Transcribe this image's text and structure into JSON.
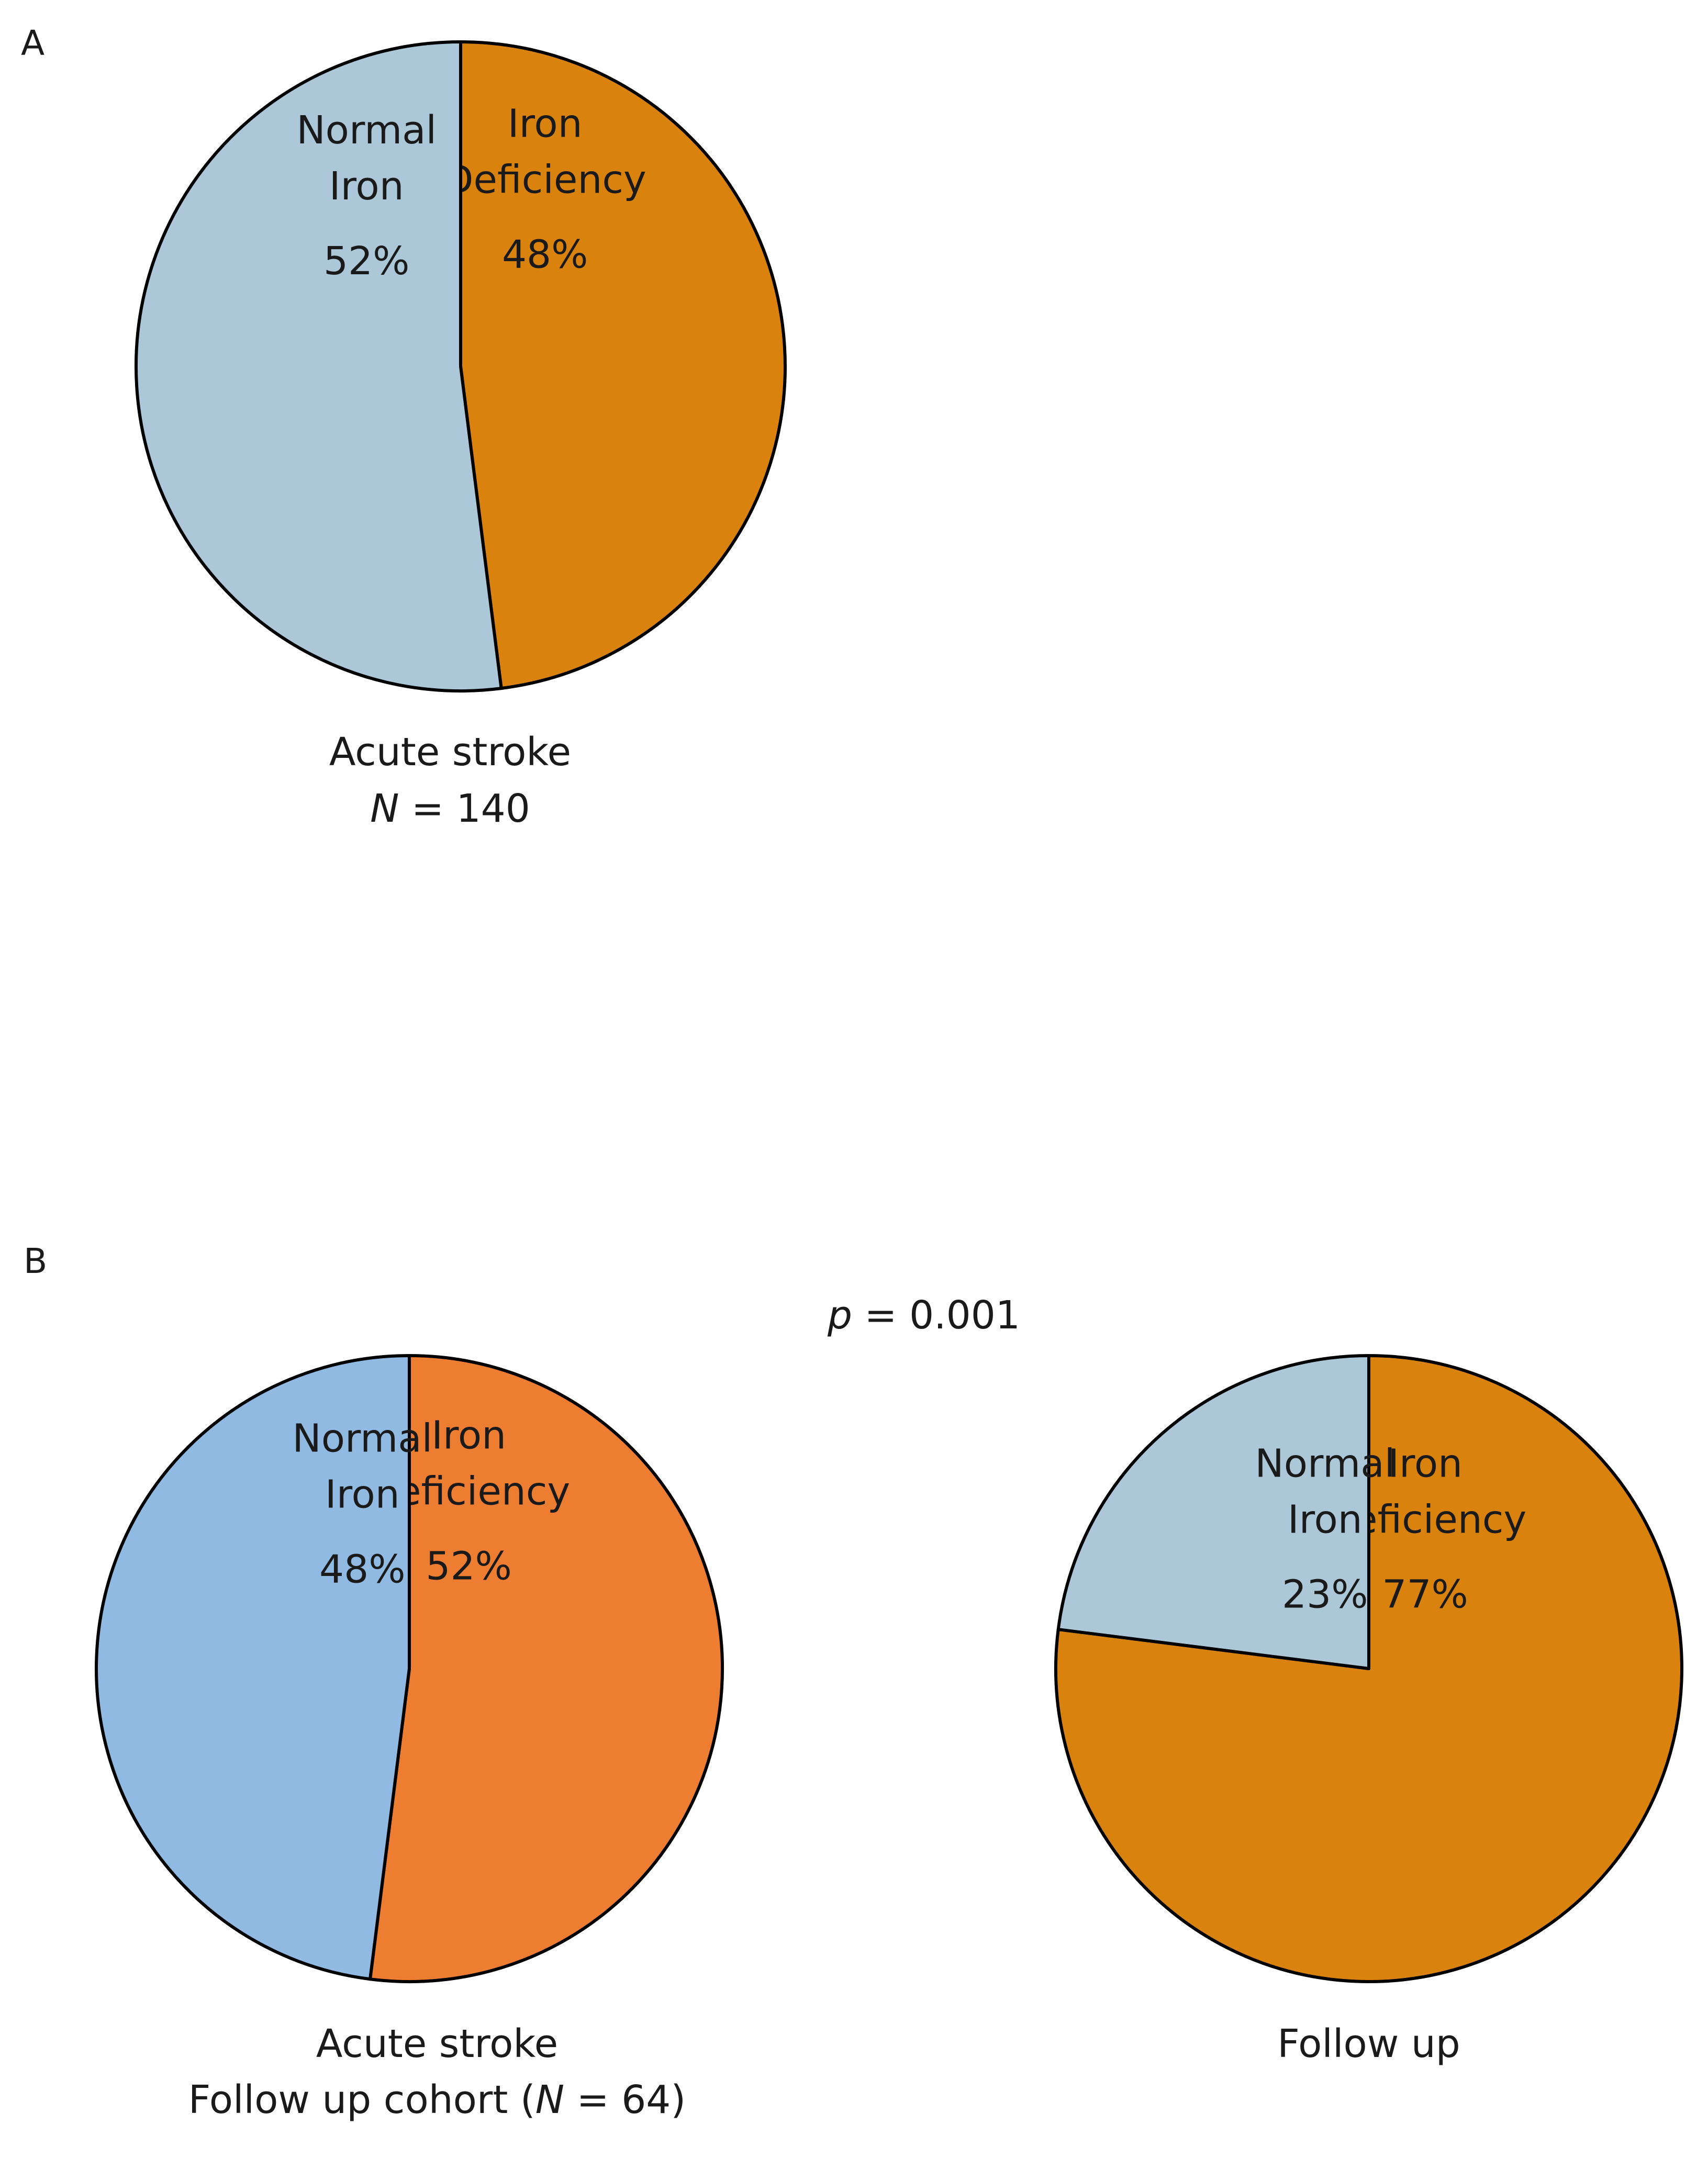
{
  "panels": {
    "a": {
      "letter": "A",
      "caption_line1": "Acute stroke",
      "caption_line2_italic": "N",
      "caption_line2_rest": " = 140"
    },
    "b": {
      "letter": "B",
      "p_italic": "p",
      "p_rest": " = 0.001",
      "left_caption_line1": "Acute stroke",
      "left_caption_line2_prefix": "Follow up cohort (",
      "left_caption_line2_italic": "N",
      "left_caption_line2_suffix": " = 64)",
      "right_caption": "Follow up"
    }
  },
  "chart_data": [
    {
      "type": "pie",
      "panel": "A",
      "title": "Acute stroke",
      "n": 140,
      "slices": [
        {
          "label_line1": "Iron",
          "label_line2": "Deficiency",
          "value": 48,
          "pct_text": "48%",
          "color": "#D9830E"
        },
        {
          "label_line1": "Normal",
          "label_line2": "Iron",
          "value": 52,
          "pct_text": "52%",
          "color": "#ACC7D8"
        }
      ]
    },
    {
      "type": "pie",
      "panel": "B",
      "title": "Acute stroke Follow up cohort",
      "n": 64,
      "slices": [
        {
          "label_line1": "Iron",
          "label_line2": "Deficiency",
          "value": 52,
          "pct_text": "52%",
          "color": "#ED7D31"
        },
        {
          "label_line1": "Normal",
          "label_line2": "Iron",
          "value": 48,
          "pct_text": "48%",
          "color": "#90BAE2"
        }
      ]
    },
    {
      "type": "pie",
      "panel": "B",
      "title": "Follow up",
      "n": 64,
      "p_value": "0.001",
      "slices": [
        {
          "label_line1": "Iron",
          "label_line2": "Deficiency",
          "value": 77,
          "pct_text": "77%",
          "color": "#D9830E"
        },
        {
          "label_line1": "Normal",
          "label_line2": "Iron",
          "value": 23,
          "pct_text": "23%",
          "color": "#ACC7D8"
        }
      ]
    }
  ]
}
